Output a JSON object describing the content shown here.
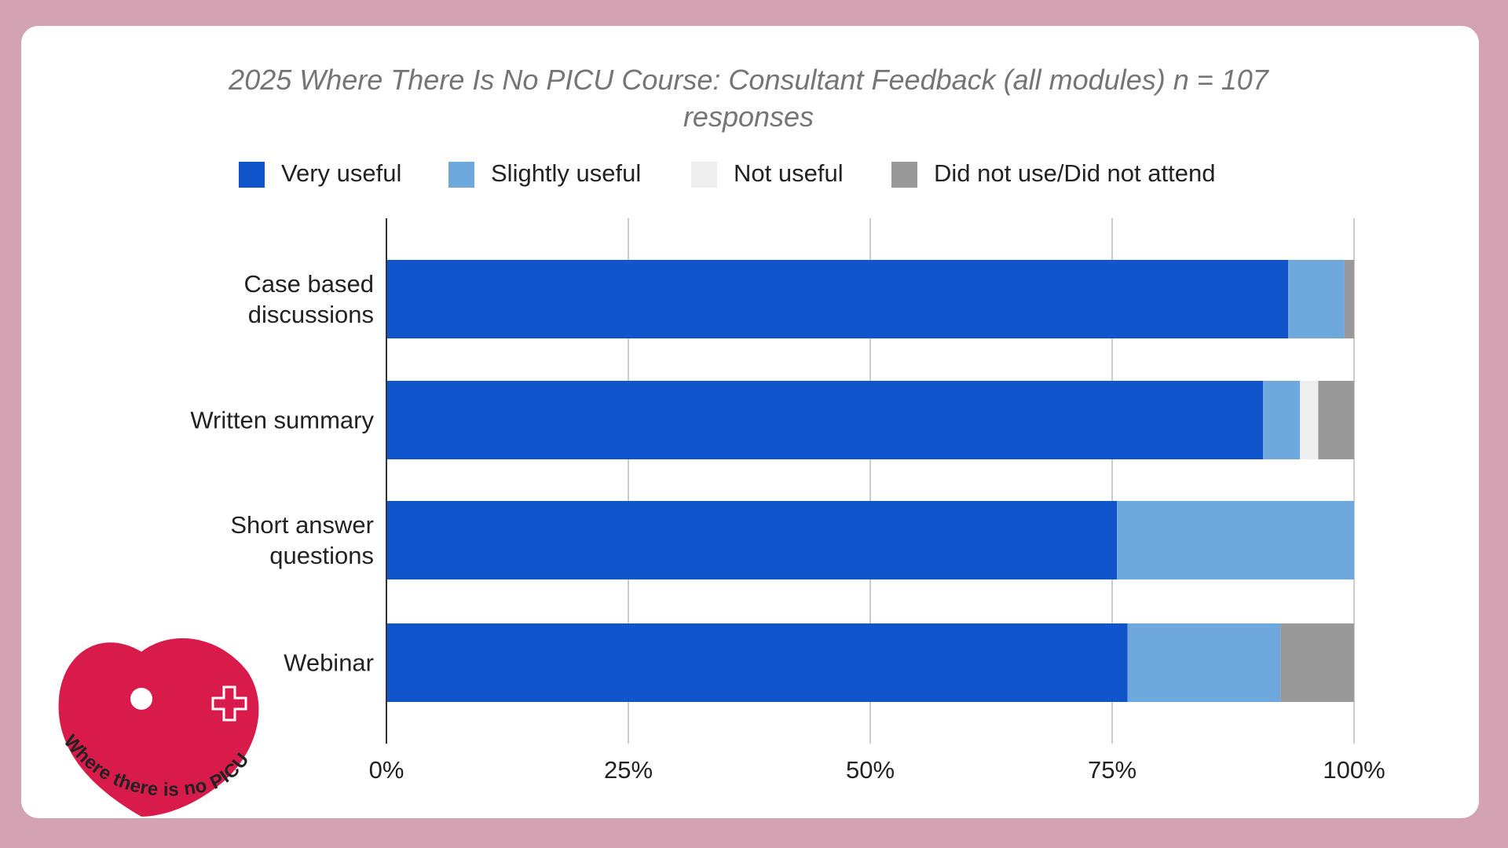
{
  "chart_data": {
    "type": "stacked-bar-horizontal",
    "title": "2025 Where There Is No PICU Course: Consultant Feedback (all modules) n = 107 responses",
    "categories": [
      "Case based discussions",
      "Written summary",
      "Short answer questions",
      "Webinar"
    ],
    "series": [
      {
        "name": "Very useful",
        "color": "#1155cc",
        "values": [
          93.2,
          90.6,
          75.5,
          76.6
        ]
      },
      {
        "name": "Slightly useful",
        "color": "#6fa8dc",
        "values": [
          5.8,
          3.8,
          24.5,
          15.8
        ]
      },
      {
        "name": "Not useful",
        "color": "#eeeeee",
        "values": [
          0,
          1.9,
          0,
          0
        ]
      },
      {
        "name": "Did not use/Did not attend",
        "color": "#999999",
        "values": [
          1.0,
          3.7,
          0,
          7.6
        ]
      }
    ],
    "xlim": [
      0,
      100
    ],
    "xticks": [
      {
        "value": 0,
        "label": "0%"
      },
      {
        "value": 25,
        "label": "25%"
      },
      {
        "value": 50,
        "label": "50%"
      },
      {
        "value": 75,
        "label": "75%"
      },
      {
        "value": 100,
        "label": "100%"
      }
    ],
    "grid": true,
    "legend": "top"
  },
  "logo": {
    "text": "Where there is no PICU"
  }
}
